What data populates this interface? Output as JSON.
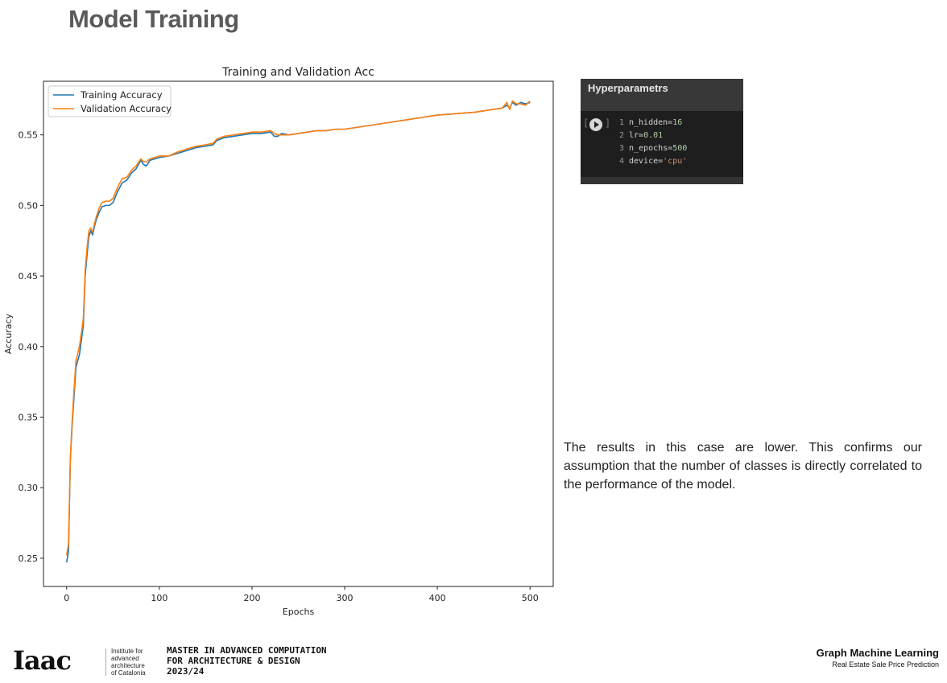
{
  "slide": {
    "title": "Model Training",
    "commentary": "The results in this case are lower. This confirms our assumption that the number of classes is directly correlated to the performance of the model."
  },
  "code_cell": {
    "header": "Hyperparametrs",
    "bracket_open": "[",
    "bracket_close": "]",
    "lines": [
      {
        "no": "1",
        "name": "n_hidden=",
        "value": "16",
        "kind": "num"
      },
      {
        "no": "2",
        "name": "lr=",
        "value": "0.01",
        "kind": "num"
      },
      {
        "no": "3",
        "name": "n_epochs=",
        "value": "500",
        "kind": "num"
      },
      {
        "no": "4",
        "name": "device=",
        "value": "'cpu'",
        "kind": "str"
      }
    ]
  },
  "footer": {
    "logo_text": "Iaac",
    "institute_lines": [
      "Institute for",
      "advanced",
      "architecture",
      "of Catalonia"
    ],
    "program_lines": [
      "MASTER IN ADVANCED COMPUTATION",
      "FOR ARCHITECTURE & DESIGN",
      "2023/24"
    ],
    "course_title": "Graph Machine Learning",
    "course_subtitle": "Real Estate Sale Price Prediction"
  },
  "chart_data": {
    "type": "line",
    "title": "Training and Validation Acc",
    "xlabel": "Epochs",
    "ylabel": "Accuracy",
    "xlim": [
      -25,
      525
    ],
    "ylim": [
      0.23,
      0.588
    ],
    "xticks": [
      0,
      100,
      200,
      300,
      400,
      500
    ],
    "yticks": [
      0.25,
      0.3,
      0.35,
      0.4,
      0.45,
      0.5,
      0.55
    ],
    "ytick_labels": [
      "0.25",
      "0.30",
      "0.35",
      "0.40",
      "0.45",
      "0.50",
      "0.55"
    ],
    "legend_position": "top-left",
    "grid": false,
    "series": [
      {
        "name": "Training Accuracy",
        "color": "#1f77b4",
        "points": [
          [
            0,
            0.247
          ],
          [
            2,
            0.255
          ],
          [
            4,
            0.32
          ],
          [
            6,
            0.345
          ],
          [
            8,
            0.365
          ],
          [
            10,
            0.385
          ],
          [
            12,
            0.39
          ],
          [
            14,
            0.395
          ],
          [
            16,
            0.405
          ],
          [
            18,
            0.415
          ],
          [
            20,
            0.45
          ],
          [
            22,
            0.465
          ],
          [
            24,
            0.478
          ],
          [
            26,
            0.482
          ],
          [
            28,
            0.479
          ],
          [
            30,
            0.485
          ],
          [
            32,
            0.49
          ],
          [
            35,
            0.495
          ],
          [
            38,
            0.499
          ],
          [
            42,
            0.5
          ],
          [
            46,
            0.5
          ],
          [
            50,
            0.502
          ],
          [
            55,
            0.51
          ],
          [
            60,
            0.516
          ],
          [
            65,
            0.518
          ],
          [
            70,
            0.523
          ],
          [
            75,
            0.526
          ],
          [
            80,
            0.532
          ],
          [
            83,
            0.529
          ],
          [
            86,
            0.528
          ],
          [
            90,
            0.532
          ],
          [
            95,
            0.533
          ],
          [
            100,
            0.534
          ],
          [
            110,
            0.535
          ],
          [
            120,
            0.537
          ],
          [
            130,
            0.539
          ],
          [
            140,
            0.541
          ],
          [
            150,
            0.542
          ],
          [
            158,
            0.543
          ],
          [
            162,
            0.546
          ],
          [
            170,
            0.548
          ],
          [
            180,
            0.549
          ],
          [
            190,
            0.55
          ],
          [
            200,
            0.551
          ],
          [
            210,
            0.551
          ],
          [
            220,
            0.552
          ],
          [
            224,
            0.549
          ],
          [
            228,
            0.549
          ],
          [
            232,
            0.551
          ],
          [
            240,
            0.55
          ],
          [
            250,
            0.551
          ],
          [
            260,
            0.552
          ],
          [
            270,
            0.553
          ],
          [
            280,
            0.553
          ],
          [
            290,
            0.554
          ],
          [
            300,
            0.554
          ],
          [
            320,
            0.556
          ],
          [
            340,
            0.558
          ],
          [
            360,
            0.56
          ],
          [
            380,
            0.562
          ],
          [
            400,
            0.564
          ],
          [
            420,
            0.565
          ],
          [
            440,
            0.566
          ],
          [
            460,
            0.568
          ],
          [
            470,
            0.569
          ],
          [
            475,
            0.571
          ],
          [
            478,
            0.569
          ],
          [
            481,
            0.573
          ],
          [
            485,
            0.571
          ],
          [
            490,
            0.573
          ],
          [
            495,
            0.572
          ],
          [
            500,
            0.573
          ]
        ]
      },
      {
        "name": "Validation Accuracy",
        "color": "#ff7f0e",
        "points": [
          [
            0,
            0.252
          ],
          [
            2,
            0.26
          ],
          [
            4,
            0.322
          ],
          [
            6,
            0.348
          ],
          [
            8,
            0.37
          ],
          [
            10,
            0.39
          ],
          [
            12,
            0.395
          ],
          [
            14,
            0.401
          ],
          [
            16,
            0.41
          ],
          [
            18,
            0.42
          ],
          [
            20,
            0.454
          ],
          [
            22,
            0.47
          ],
          [
            24,
            0.482
          ],
          [
            26,
            0.484
          ],
          [
            28,
            0.481
          ],
          [
            30,
            0.487
          ],
          [
            32,
            0.492
          ],
          [
            35,
            0.498
          ],
          [
            38,
            0.502
          ],
          [
            42,
            0.503
          ],
          [
            46,
            0.503
          ],
          [
            50,
            0.505
          ],
          [
            55,
            0.513
          ],
          [
            60,
            0.519
          ],
          [
            65,
            0.52
          ],
          [
            70,
            0.525
          ],
          [
            75,
            0.528
          ],
          [
            80,
            0.533
          ],
          [
            83,
            0.531
          ],
          [
            86,
            0.531
          ],
          [
            90,
            0.533
          ],
          [
            95,
            0.534
          ],
          [
            100,
            0.535
          ],
          [
            110,
            0.535
          ],
          [
            120,
            0.538
          ],
          [
            130,
            0.54
          ],
          [
            140,
            0.542
          ],
          [
            150,
            0.543
          ],
          [
            158,
            0.544
          ],
          [
            162,
            0.547
          ],
          [
            170,
            0.549
          ],
          [
            180,
            0.55
          ],
          [
            190,
            0.551
          ],
          [
            200,
            0.552
          ],
          [
            210,
            0.552
          ],
          [
            220,
            0.553
          ],
          [
            224,
            0.551
          ],
          [
            228,
            0.55
          ],
          [
            232,
            0.55
          ],
          [
            240,
            0.55
          ],
          [
            250,
            0.551
          ],
          [
            260,
            0.552
          ],
          [
            270,
            0.553
          ],
          [
            280,
            0.553
          ],
          [
            290,
            0.554
          ],
          [
            300,
            0.554
          ],
          [
            320,
            0.556
          ],
          [
            340,
            0.558
          ],
          [
            360,
            0.56
          ],
          [
            380,
            0.562
          ],
          [
            400,
            0.564
          ],
          [
            420,
            0.565
          ],
          [
            440,
            0.566
          ],
          [
            460,
            0.568
          ],
          [
            470,
            0.569
          ],
          [
            475,
            0.573
          ],
          [
            478,
            0.568
          ],
          [
            481,
            0.574
          ],
          [
            485,
            0.572
          ],
          [
            490,
            0.572
          ],
          [
            495,
            0.571
          ],
          [
            500,
            0.574
          ]
        ]
      }
    ]
  }
}
